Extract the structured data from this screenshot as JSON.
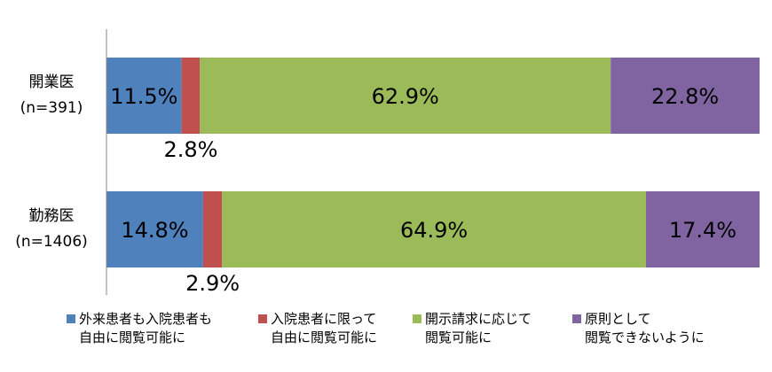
{
  "chart_data": {
    "type": "bar",
    "stacked": true,
    "orientation": "horizontal",
    "normalized_percent": true,
    "categories": [
      {
        "name": "開業医",
        "n": "(n=391)"
      },
      {
        "name": "勤務医",
        "n": "(n=1406)"
      }
    ],
    "series": [
      {
        "name": "外来患者も入院患者も\n自由に閲覧可能に",
        "color": "#4f81bd",
        "values": [
          11.5,
          14.8
        ]
      },
      {
        "name": "入院患者に限って\n自由に閲覧可能に",
        "color": "#c0504d",
        "values": [
          2.8,
          2.9
        ]
      },
      {
        "name": "開示請求に応じて\n閲覧可能に",
        "color": "#9bbb59",
        "values": [
          62.9,
          64.9
        ]
      },
      {
        "name": "原則として\n閲覧できないように",
        "color": "#8064a2",
        "values": [
          22.8,
          17.4
        ]
      }
    ],
    "data_labels": [
      [
        "11.5%",
        "2.8%",
        "62.9%",
        "22.8%"
      ],
      [
        "14.8%",
        "2.9%",
        "64.9%",
        "17.4%"
      ]
    ],
    "xlim": [
      0,
      100
    ],
    "grid": false,
    "legend_position": "bottom"
  }
}
